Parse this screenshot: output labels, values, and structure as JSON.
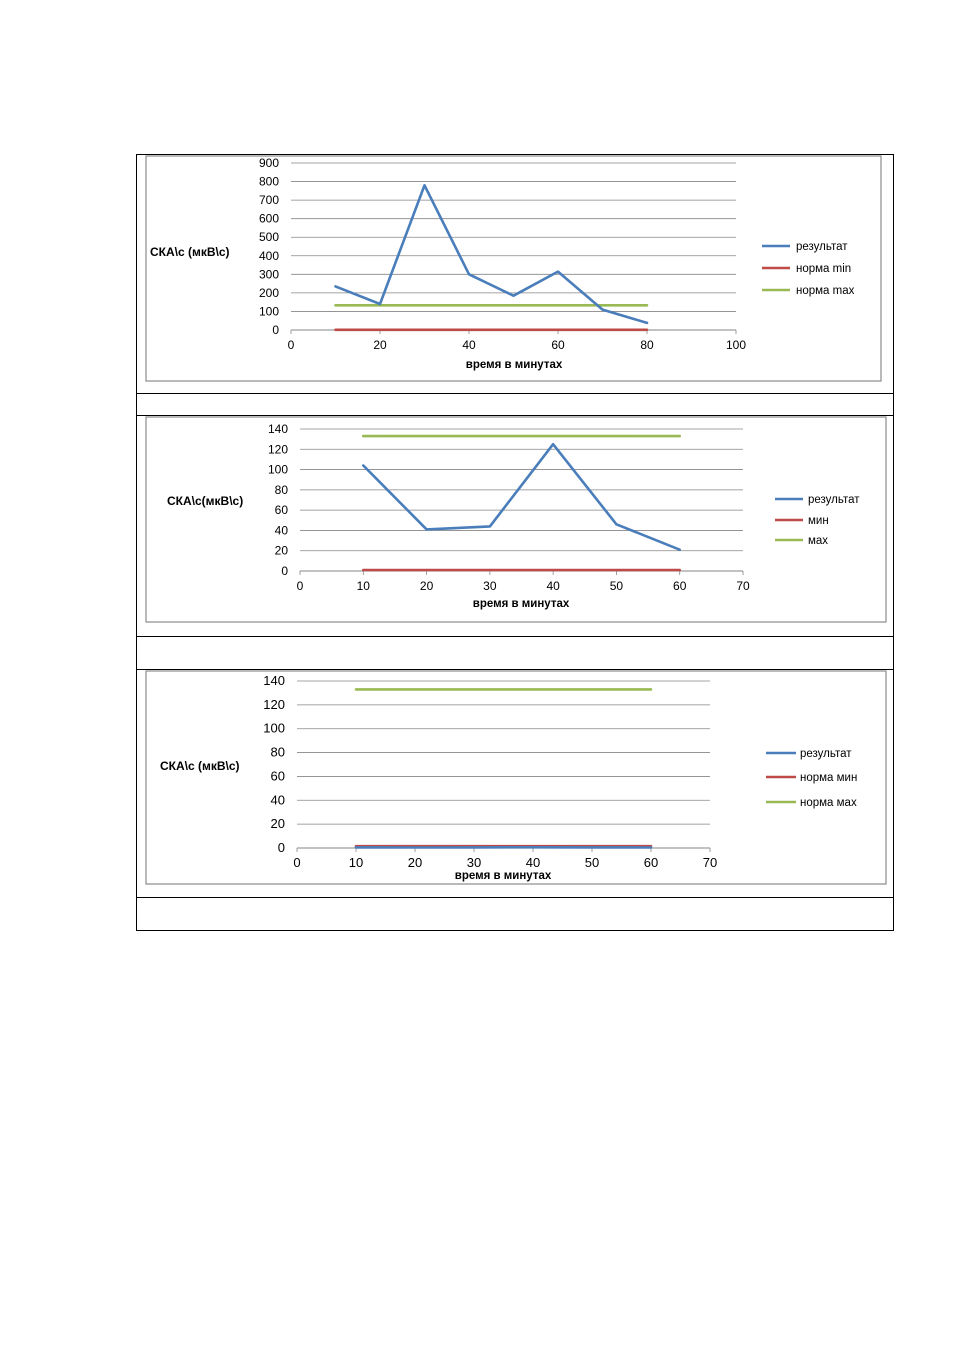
{
  "colors": {
    "result": "#4a7ebb",
    "min": "#be4b48",
    "max": "#98b954",
    "grid": "#868686",
    "chart_border": "#8c8c8c"
  },
  "chart_data": [
    {
      "type": "line",
      "ylabel": "СКА\\с (мкВ\\с)",
      "xlabel": "время в минутах",
      "xlim": [
        0,
        100
      ],
      "ylim": [
        0,
        900
      ],
      "xticks": [
        0,
        20,
        40,
        60,
        80,
        100
      ],
      "yticks": [
        0,
        100,
        200,
        300,
        400,
        500,
        600,
        700,
        800,
        900
      ],
      "grid": true,
      "legend": "right",
      "series": [
        {
          "name": "результат",
          "color_key": "result",
          "x": [
            10,
            20,
            30,
            40,
            50,
            60,
            70,
            80
          ],
          "y": [
            235,
            140,
            780,
            300,
            185,
            315,
            110,
            38
          ]
        },
        {
          "name": "норма min",
          "color_key": "min",
          "x": [
            10,
            80
          ],
          "y": [
            1,
            1
          ]
        },
        {
          "name": "норма max",
          "color_key": "max",
          "x": [
            10,
            80
          ],
          "y": [
            133,
            133
          ]
        }
      ]
    },
    {
      "type": "line",
      "ylabel": "СКА\\с(мкВ\\с)",
      "xlabel": "время в минутах",
      "xlim": [
        0,
        70
      ],
      "ylim": [
        0,
        140
      ],
      "xticks": [
        0,
        10,
        20,
        30,
        40,
        50,
        60,
        70
      ],
      "yticks": [
        0,
        20,
        40,
        60,
        80,
        100,
        120,
        140
      ],
      "grid": true,
      "legend": "right",
      "series": [
        {
          "name": "результат",
          "color_key": "result",
          "x": [
            10,
            20,
            30,
            40,
            50,
            60
          ],
          "y": [
            104,
            41,
            44,
            125,
            46,
            21
          ]
        },
        {
          "name": "мин",
          "color_key": "min",
          "x": [
            10,
            60
          ],
          "y": [
            1,
            1
          ]
        },
        {
          "name": "мах",
          "color_key": "max",
          "x": [
            10,
            60
          ],
          "y": [
            133,
            133
          ]
        }
      ]
    },
    {
      "type": "line",
      "ylabel": "СКА\\с (мкВ\\с)",
      "xlabel": "время в минутах",
      "xlim": [
        0,
        70
      ],
      "ylim": [
        0,
        140
      ],
      "xticks": [
        0,
        10,
        20,
        30,
        40,
        50,
        60,
        70
      ],
      "yticks": [
        0,
        20,
        40,
        60,
        80,
        100,
        120,
        140
      ],
      "grid": true,
      "legend": "right",
      "series": [
        {
          "name": "результат",
          "color_key": "result",
          "x": [
            10,
            20,
            30,
            40,
            50,
            60
          ],
          "y": [
            0.5,
            0.4,
            0.5,
            0.6,
            0.5,
            0.4
          ]
        },
        {
          "name": "норма мин",
          "color_key": "min",
          "x": [
            10,
            60
          ],
          "y": [
            1.5,
            1.5
          ]
        },
        {
          "name": "норма мах",
          "color_key": "max",
          "x": [
            10,
            60
          ],
          "y": [
            133,
            133
          ]
        }
      ]
    }
  ]
}
